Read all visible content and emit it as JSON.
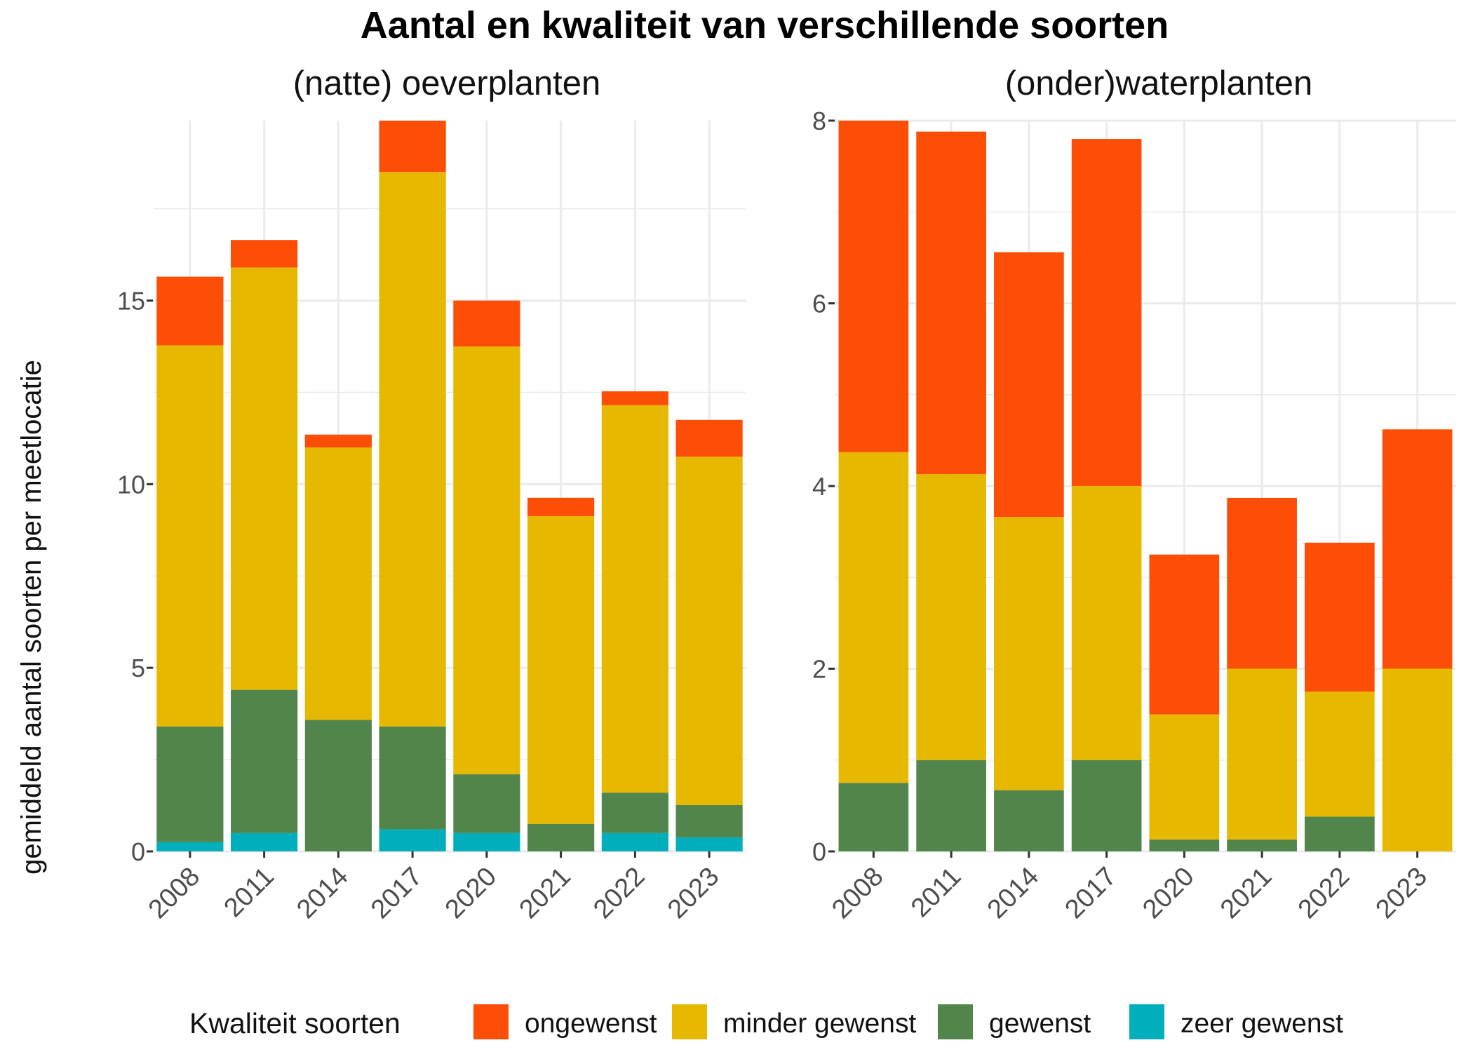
{
  "chart_data": {
    "title": "Aantal en kwaliteit van verschillende soorten",
    "ylabel": "gemiddeld aantal soorten per meetlocatie",
    "legend": {
      "title": "Kwaliteit soorten",
      "position": "bottom",
      "items": [
        {
          "name": "ongewenst",
          "color": "#FC4E07"
        },
        {
          "name": "minder gewenst",
          "color": "#E7B800"
        },
        {
          "name": "gewenst",
          "color": "#52854C"
        },
        {
          "name": "zeer gewenst",
          "color": "#00AFBB"
        }
      ]
    },
    "panels": [
      {
        "type": "bar",
        "stacked": true,
        "title": "(natte) oeverplanten",
        "categories": [
          "2008",
          "2011",
          "2014",
          "2017",
          "2020",
          "2021",
          "2022",
          "2023"
        ],
        "ylim": [
          0,
          19.9
        ],
        "yticks": [
          0,
          5,
          10,
          15
        ],
        "grid": true,
        "series": [
          {
            "name": "zeer gewenst",
            "values": [
              0.25,
              0.5,
              0.0,
              0.6,
              0.5,
              0.0,
              0.5,
              0.38
            ]
          },
          {
            "name": "gewenst",
            "values": [
              3.15,
              3.9,
              3.58,
              2.8,
              1.6,
              0.75,
              1.1,
              0.88
            ]
          },
          {
            "name": "minder gewenst",
            "values": [
              10.38,
              11.5,
              7.42,
              15.1,
              11.65,
              8.38,
              10.55,
              9.49
            ]
          },
          {
            "name": "ongewenst",
            "values": [
              1.87,
              0.75,
              0.35,
              1.4,
              1.25,
              0.5,
              0.38,
              1.0
            ]
          }
        ]
      },
      {
        "type": "bar",
        "stacked": true,
        "title": "(onder)waterplanten",
        "categories": [
          "2008",
          "2011",
          "2014",
          "2017",
          "2020",
          "2021",
          "2022",
          "2023"
        ],
        "ylim": [
          0,
          8
        ],
        "yticks": [
          0,
          2,
          4,
          6,
          8
        ],
        "grid": true,
        "series": [
          {
            "name": "zeer gewenst",
            "values": [
              0,
              0,
              0,
              0,
              0,
              0,
              0,
              0
            ]
          },
          {
            "name": "gewenst",
            "values": [
              0.75,
              1.0,
              0.67,
              1.0,
              0.13,
              0.13,
              0.38,
              0.0
            ]
          },
          {
            "name": "minder gewenst",
            "values": [
              3.62,
              3.13,
              2.99,
              3.0,
              1.37,
              1.87,
              1.37,
              2.0
            ]
          },
          {
            "name": "ongewenst",
            "values": [
              3.63,
              3.75,
              2.9,
              3.8,
              1.75,
              1.87,
              1.63,
              2.62
            ]
          }
        ]
      }
    ]
  }
}
